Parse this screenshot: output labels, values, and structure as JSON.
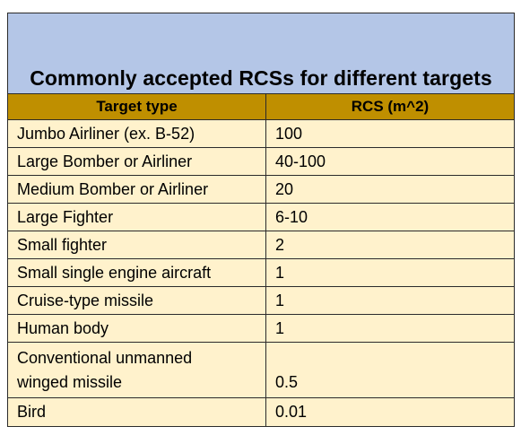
{
  "table": {
    "title": "Commonly accepted RCSs for different targets",
    "headers": {
      "type": "Target type",
      "rcs": "RCS (m^2)"
    },
    "rows": [
      {
        "type": "Jumbo Airliner (ex. B-52)",
        "rcs": "100"
      },
      {
        "type": "Large Bomber or Airliner",
        "rcs": "40-100"
      },
      {
        "type": "Medium Bomber or Airliner",
        "rcs": "20"
      },
      {
        "type": "Large Fighter",
        "rcs": "6-10"
      },
      {
        "type": "Small fighter",
        "rcs": "2"
      },
      {
        "type": "Small single engine aircraft",
        "rcs": "1"
      },
      {
        "type": "Cruise-type missile",
        "rcs": "1"
      },
      {
        "type": "Human body",
        "rcs": "1"
      },
      {
        "type": "Conventional unmanned winged missile",
        "rcs": "0.5"
      },
      {
        "type": "Bird",
        "rcs": "0.01"
      }
    ]
  },
  "colors": {
    "title_bg": "#b4c6e7",
    "header_bg": "#bf8f00",
    "row_bg": "#fff2cc",
    "border": "#2b2b2b"
  }
}
